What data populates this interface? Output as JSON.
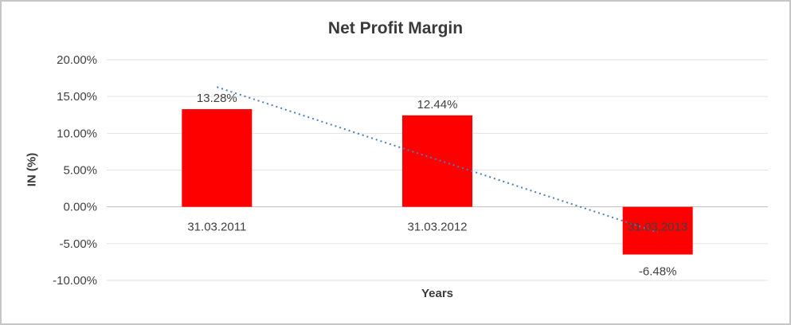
{
  "frame": {
    "background": "#FFFFFF",
    "border_color": "#C6C6C6"
  },
  "chart_data": {
    "type": "bar",
    "title": "Net Profit Margin",
    "xlabel": "Years",
    "ylabel": "IN (%)",
    "categories": [
      "31.03.2011",
      "31.03.2012",
      "31.03.2013"
    ],
    "series": [
      {
        "name": "Net Profit Margin",
        "values": [
          13.28,
          12.44,
          -6.48
        ],
        "color": "#FF0000"
      }
    ],
    "data_labels": [
      "13.28%",
      "12.44%",
      "-6.48%"
    ],
    "ylim": [
      -10,
      20
    ],
    "yticks": [
      {
        "value": 20,
        "label": "20.00%"
      },
      {
        "value": 15,
        "label": "15.00%"
      },
      {
        "value": 10,
        "label": "10.00%"
      },
      {
        "value": 5,
        "label": "5.00%"
      },
      {
        "value": 0,
        "label": "0.00%"
      },
      {
        "value": -5,
        "label": "-5.00%"
      },
      {
        "value": -10,
        "label": "-10.00%"
      }
    ],
    "grid": true,
    "legend": false,
    "trendline": {
      "type": "linear",
      "style": "dotted",
      "color": "#4A7EBB",
      "y_start": 16.29,
      "y_end": -3.47
    }
  }
}
